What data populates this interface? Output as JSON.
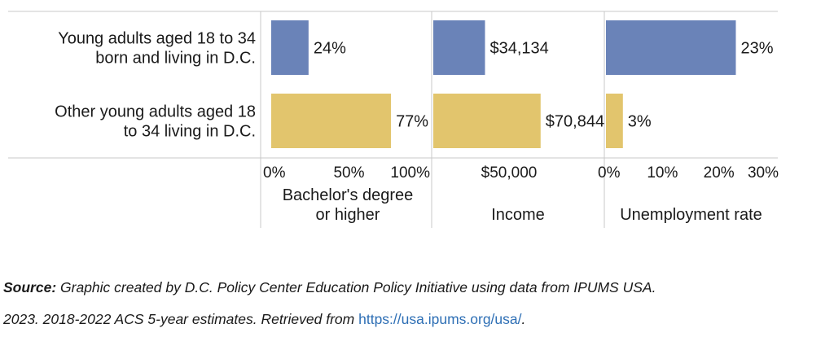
{
  "chart_data": {
    "type": "bar",
    "orientation": "horizontal",
    "categories": [
      [
        "Young adults aged 18 to 34",
        "born and living in D.C."
      ],
      [
        "Other young adults aged 18",
        "to 34 living in D.C."
      ]
    ],
    "colors": [
      "#6a83b8",
      "#e2c56d"
    ],
    "panels": [
      {
        "name": "bachelors",
        "xlabel": [
          "Bachelor's degree",
          "or higher"
        ],
        "xlim": [
          0,
          100
        ],
        "ticks": [
          0,
          50,
          100
        ],
        "tick_labels": [
          "0%",
          "50%",
          "100%"
        ],
        "values": [
          24,
          77
        ],
        "value_labels": [
          "24%",
          "77%"
        ]
      },
      {
        "name": "income",
        "xlabel": [
          "Income"
        ],
        "xlim": [
          0,
          100000
        ],
        "ticks": [
          50000
        ],
        "tick_labels": [
          "$50,000"
        ],
        "values": [
          34134,
          70844
        ],
        "value_labels": [
          "$34,134",
          "$70,844"
        ]
      },
      {
        "name": "unemployment",
        "xlabel": [
          "Unemployment rate"
        ],
        "xlim": [
          0,
          30
        ],
        "ticks": [
          0,
          10,
          20,
          30
        ],
        "tick_labels": [
          "0%",
          "10%",
          "20%",
          "30%"
        ],
        "values": [
          23,
          3
        ],
        "value_labels": [
          "23%",
          "3%"
        ]
      }
    ]
  },
  "source": {
    "label": "Source:",
    "line1_text": " Graphic created by D.C. Policy Center Education Policy Initiative using data from IPUMS USA.",
    "line2_text": "2023. 2018-2022 ACS 5-year estimates. Retrieved from ",
    "link": "https://usa.ipums.org/usa/",
    "line2_end": "."
  }
}
